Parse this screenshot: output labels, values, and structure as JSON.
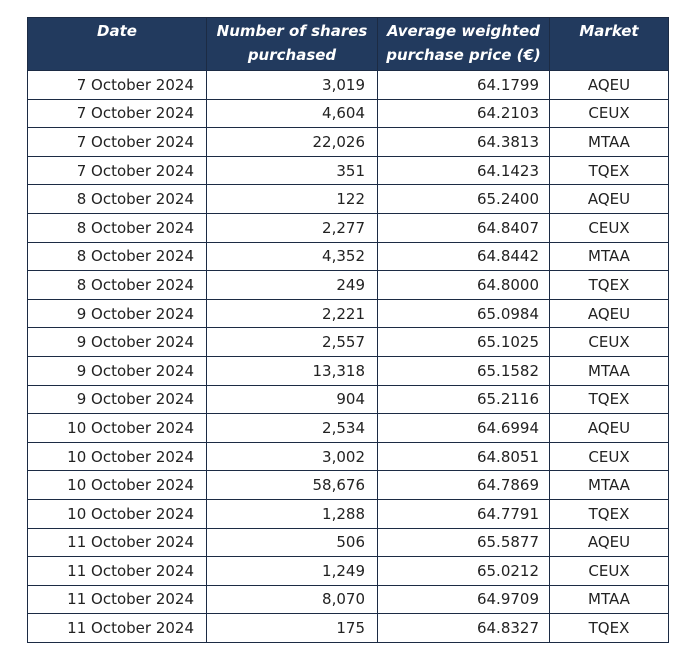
{
  "table": {
    "headers": {
      "date": "Date",
      "shares": "Number of shares purchased",
      "price": "Average weighted purchase price (€)",
      "market": "Market"
    },
    "rows": [
      {
        "date": "7 October 2024",
        "shares": "3,019",
        "price": "64.1799",
        "market": "AQEU"
      },
      {
        "date": "7 October 2024",
        "shares": "4,604",
        "price": "64.2103",
        "market": "CEUX"
      },
      {
        "date": "7 October 2024",
        "shares": "22,026",
        "price": "64.3813",
        "market": "MTAA"
      },
      {
        "date": "7 October 2024",
        "shares": "351",
        "price": "64.1423",
        "market": "TQEX"
      },
      {
        "date": "8 October 2024",
        "shares": "122",
        "price": "65.2400",
        "market": "AQEU"
      },
      {
        "date": "8 October 2024",
        "shares": "2,277",
        "price": "64.8407",
        "market": "CEUX"
      },
      {
        "date": "8 October 2024",
        "shares": "4,352",
        "price": "64.8442",
        "market": "MTAA"
      },
      {
        "date": "8 October 2024",
        "shares": "249",
        "price": "64.8000",
        "market": "TQEX"
      },
      {
        "date": "9 October 2024",
        "shares": "2,221",
        "price": "65.0984",
        "market": "AQEU"
      },
      {
        "date": "9 October 2024",
        "shares": "2,557",
        "price": "65.1025",
        "market": "CEUX"
      },
      {
        "date": "9 October 2024",
        "shares": "13,318",
        "price": "65.1582",
        "market": "MTAA"
      },
      {
        "date": "9 October 2024",
        "shares": "904",
        "price": "65.2116",
        "market": "TQEX"
      },
      {
        "date": "10 October 2024",
        "shares": "2,534",
        "price": "64.6994",
        "market": "AQEU"
      },
      {
        "date": "10 October 2024",
        "shares": "3,002",
        "price": "64.8051",
        "market": "CEUX"
      },
      {
        "date": "10 October 2024",
        "shares": "58,676",
        "price": "64.7869",
        "market": "MTAA"
      },
      {
        "date": "10 October 2024",
        "shares": "1,288",
        "price": "64.7791",
        "market": "TQEX"
      },
      {
        "date": "11 October 2024",
        "shares": "506",
        "price": "65.5877",
        "market": "AQEU"
      },
      {
        "date": "11 October 2024",
        "shares": "1,249",
        "price": "65.0212",
        "market": "CEUX"
      },
      {
        "date": "11 October 2024",
        "shares": "8,070",
        "price": "64.9709",
        "market": "MTAA"
      },
      {
        "date": "11 October 2024",
        "shares": "175",
        "price": "64.8327",
        "market": "TQEX"
      }
    ]
  },
  "colors": {
    "header_background": "#223a5e",
    "header_text": "#ffffff",
    "border": "#1c2b44"
  }
}
